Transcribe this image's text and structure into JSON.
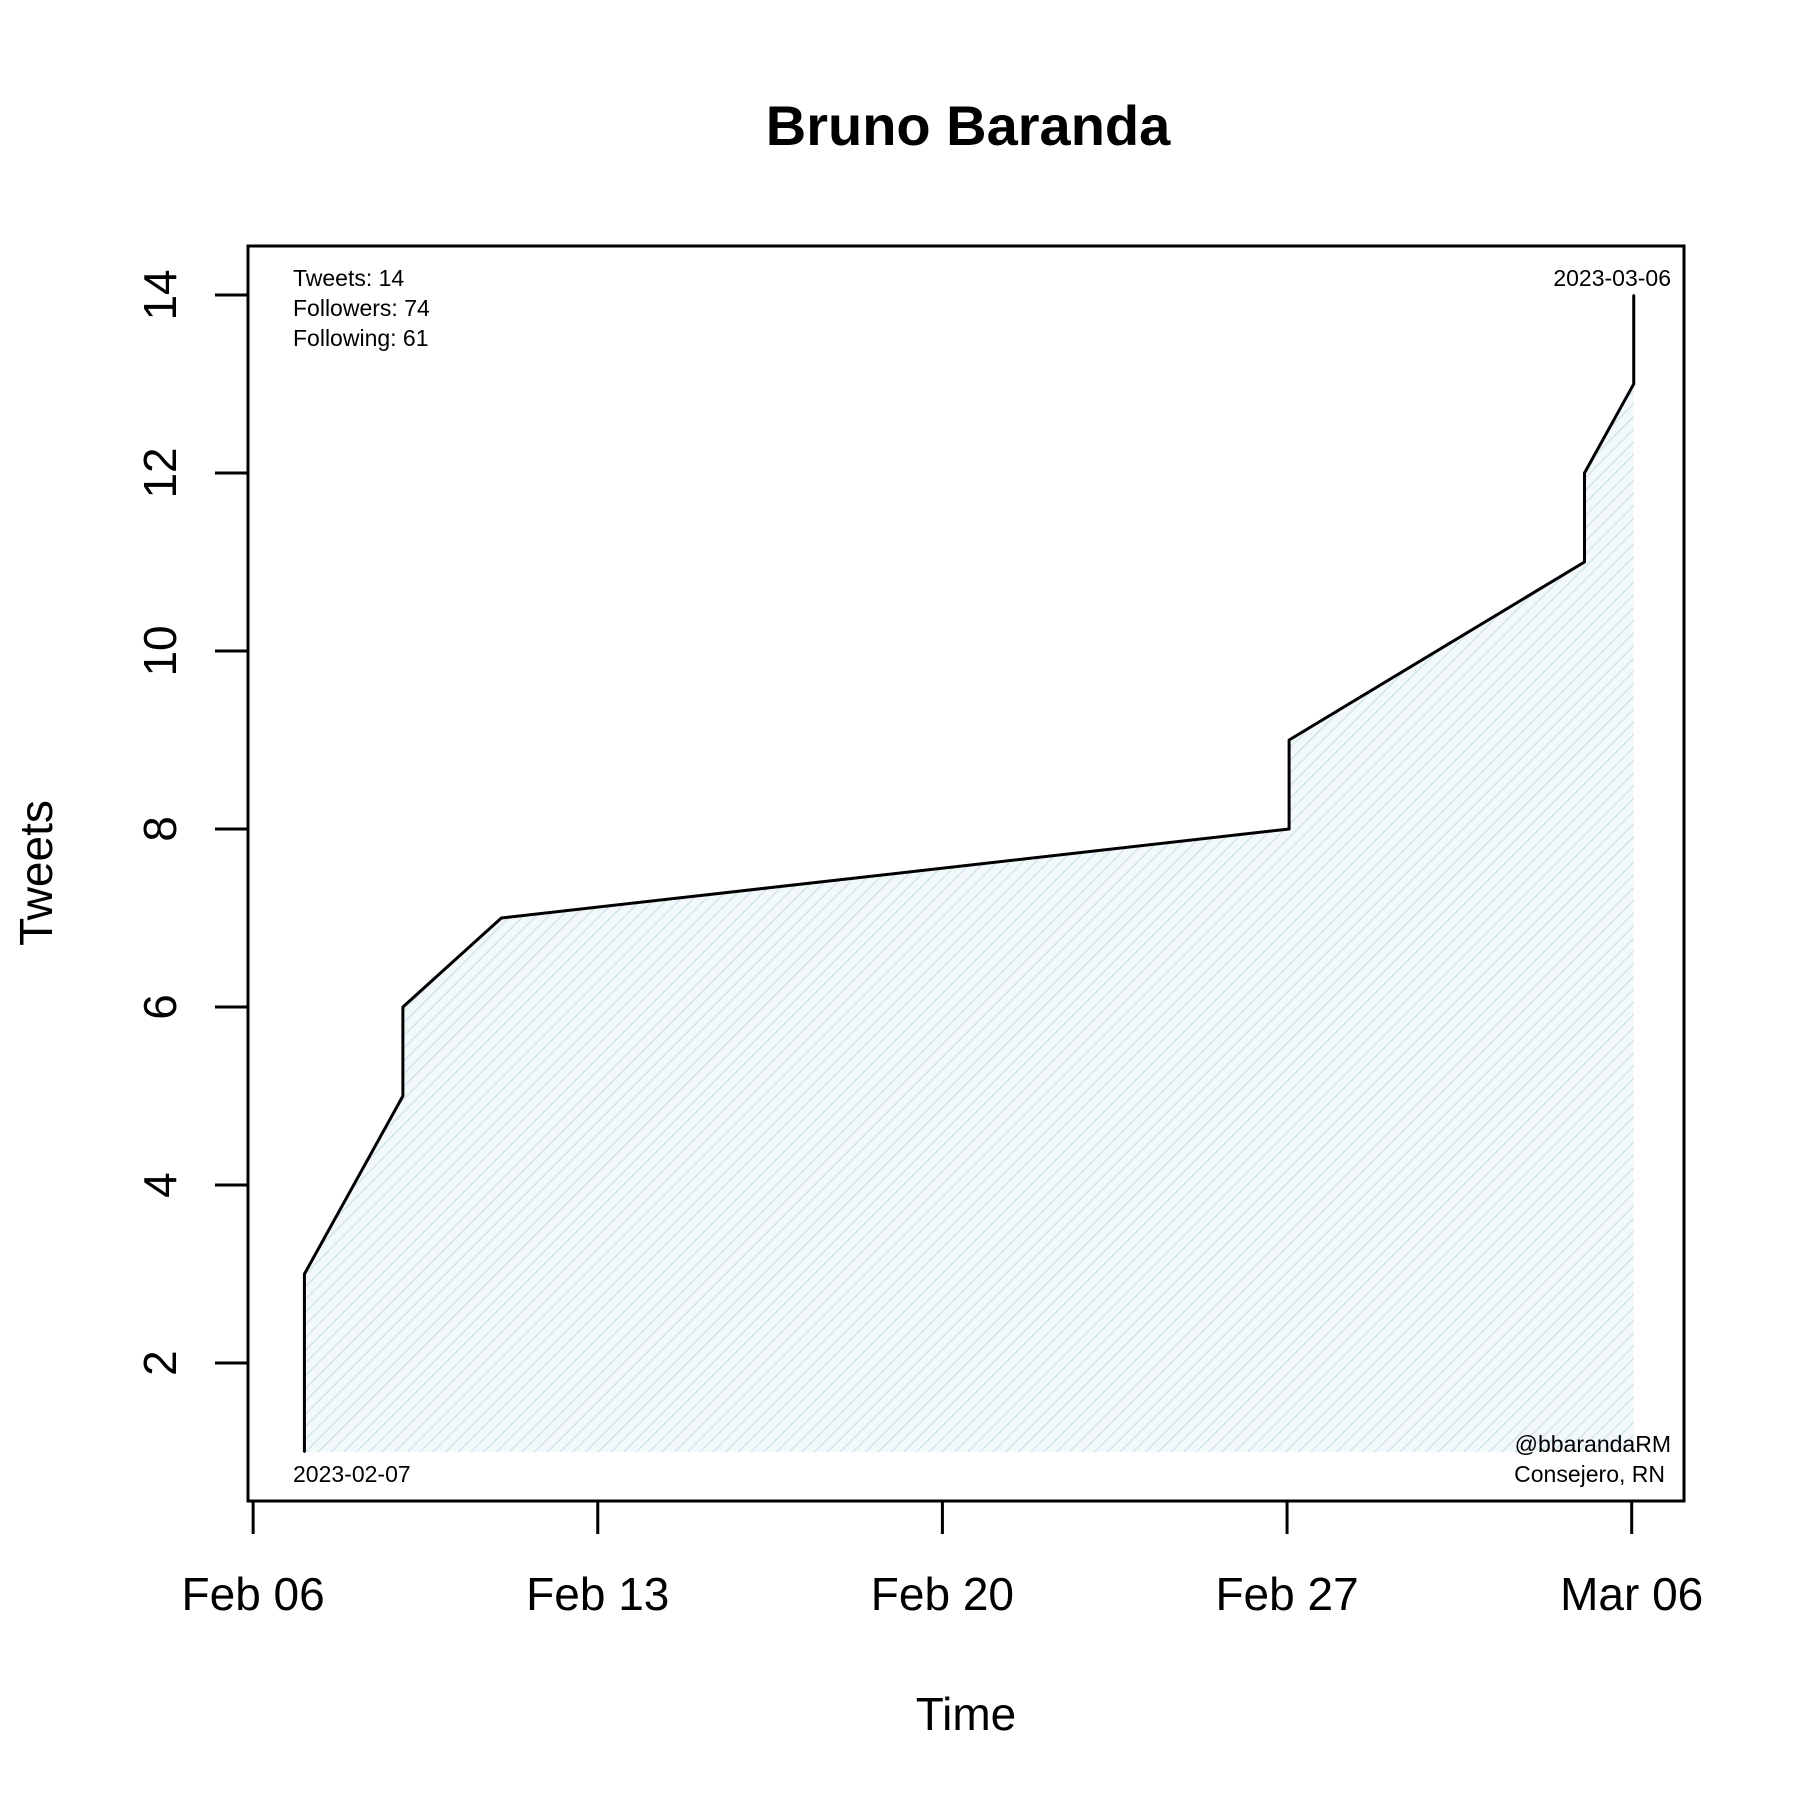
{
  "chart_data": {
    "type": "area",
    "title": "Bruno Baranda",
    "xlabel": "Time",
    "ylabel": "Tweets",
    "x_is_date": true,
    "xlim": [
      "2023-02-05 21:30",
      "2023-03-07 01:30"
    ],
    "ylim": [
      0.45,
      14.55
    ],
    "x_ticks": [
      {
        "value": "2023-02-06",
        "label": "Feb 06"
      },
      {
        "value": "2023-02-13",
        "label": "Feb 13"
      },
      {
        "value": "2023-02-20",
        "label": "Feb 20"
      },
      {
        "value": "2023-02-27",
        "label": "Feb 27"
      },
      {
        "value": "2023-03-06",
        "label": "Mar 06"
      }
    ],
    "y_ticks": [
      2,
      4,
      6,
      8,
      10,
      12,
      14
    ],
    "series": [
      {
        "x": [
          "2023-02-07 01:00",
          "2023-02-07 01:00",
          "2023-02-09 01:00",
          "2023-02-09 01:00",
          "2023-02-11 01:00",
          "2023-02-27 01:00",
          "2023-02-27 01:00",
          "2023-03-05 01:00",
          "2023-03-05 01:00",
          "2023-03-06 01:00",
          "2023-03-06 01:00"
        ],
        "y": [
          1,
          3,
          5,
          6,
          7,
          8,
          9,
          11,
          12,
          13,
          14
        ]
      }
    ],
    "fill_color": "#dcecf0",
    "line_color": "#000000",
    "grid": false
  },
  "annotations": {
    "stats": [
      "Tweets: 14",
      "Followers: 74",
      "Following: 61"
    ],
    "start_date": "2023-02-07",
    "end_date": "2023-03-06",
    "handle": "@bbarandaRM",
    "role": "Consejero, RN"
  }
}
